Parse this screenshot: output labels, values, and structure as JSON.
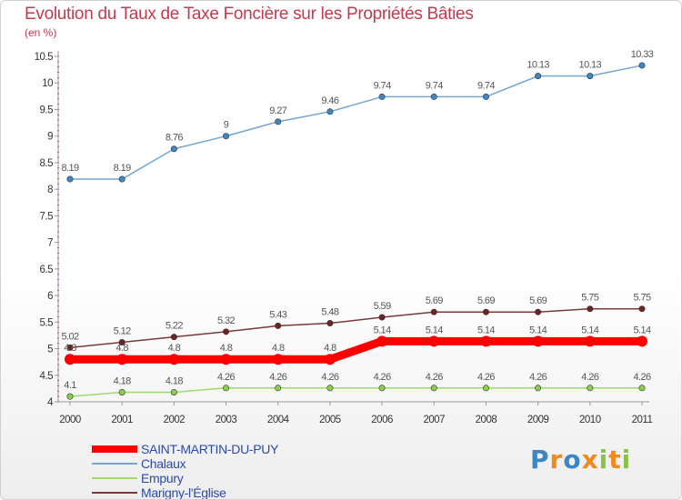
{
  "title": "Evolution du Taux de Taxe Foncière sur les Propriétés Bâties",
  "unit_label": "(en %)",
  "logo": {
    "text": "Proxiti",
    "letters": [
      {
        "ch": "P",
        "color": "#3d86c6"
      },
      {
        "ch": "r",
        "color": "#f08a1c"
      },
      {
        "ch": "o",
        "color": "#3d86c6"
      },
      {
        "ch": "x",
        "color": "#f08a1c"
      },
      {
        "ch": "i",
        "color": "#8bc34a"
      },
      {
        "ch": "t",
        "color": "#f08a1c"
      },
      {
        "ch": "i",
        "color": "#8bc34a"
      }
    ]
  },
  "chart_data": {
    "type": "line",
    "title": "Evolution du Taux de Taxe Foncière sur les Propriétés Bâties",
    "ylabel": "(en %)",
    "xlabel": "",
    "categories": [
      "2000",
      "2001",
      "2002",
      "2003",
      "2004",
      "2005",
      "2006",
      "2007",
      "2008",
      "2009",
      "2010",
      "2011"
    ],
    "ylim": [
      4,
      10.5
    ],
    "yticks": [
      "4",
      "4.5",
      "5",
      "5.5",
      "6",
      "6.5",
      "7",
      "7.5",
      "8",
      "8.5",
      "9",
      "9.5",
      "10",
      "10.5"
    ],
    "legend_position": "bottom-left",
    "grid": false,
    "series": [
      {
        "name": "SAINT-MARTIN-DU-PUY",
        "color": "#ff0000",
        "marker_color": "#ff0000",
        "thick": true,
        "values": [
          4.8,
          4.8,
          4.8,
          4.8,
          4.8,
          4.8,
          5.14,
          5.14,
          5.14,
          5.14,
          5.14,
          5.14
        ],
        "labels": [
          "4.8",
          "4.8",
          "4.8",
          "4.8",
          "4.8",
          "4.8",
          "5.14",
          "5.14",
          "5.14",
          "5.14",
          "5.14",
          "5.14"
        ]
      },
      {
        "name": "Chalaux",
        "color": "#72a6d4",
        "marker_color": "#3f86c4",
        "thick": false,
        "values": [
          8.19,
          8.19,
          8.76,
          9,
          9.27,
          9.46,
          9.74,
          9.74,
          9.74,
          10.13,
          10.13,
          10.33
        ],
        "labels": [
          "8.19",
          "8.19",
          "8.76",
          "9",
          "9.27",
          "9.46",
          "9.74",
          "9.74",
          "9.74",
          "10.13",
          "10.13",
          "10.33"
        ]
      },
      {
        "name": "Empury",
        "color": "#9ed96a",
        "marker_color": "#8ccf4f",
        "thick": false,
        "values": [
          4.1,
          4.18,
          4.18,
          4.26,
          4.26,
          4.26,
          4.26,
          4.26,
          4.26,
          4.26,
          4.26,
          4.26
        ],
        "labels": [
          "4.1",
          "4.18",
          "4.18",
          "4.26",
          "4.26",
          "4.26",
          "4.26",
          "4.26",
          "4.26",
          "4.26",
          "4.26",
          "4.26"
        ]
      },
      {
        "name": "Marigny-l'Église",
        "color": "#7a3a3a",
        "marker_color": "#6e2222",
        "thick": false,
        "values": [
          5.02,
          5.12,
          5.22,
          5.32,
          5.43,
          5.48,
          5.59,
          5.69,
          5.69,
          5.69,
          5.75,
          5.75
        ],
        "labels": [
          "5.02",
          "5.12",
          "5.22",
          "5.32",
          "5.43",
          "5.48",
          "5.59",
          "5.69",
          "5.69",
          "5.69",
          "5.75",
          "5.75"
        ]
      }
    ]
  }
}
